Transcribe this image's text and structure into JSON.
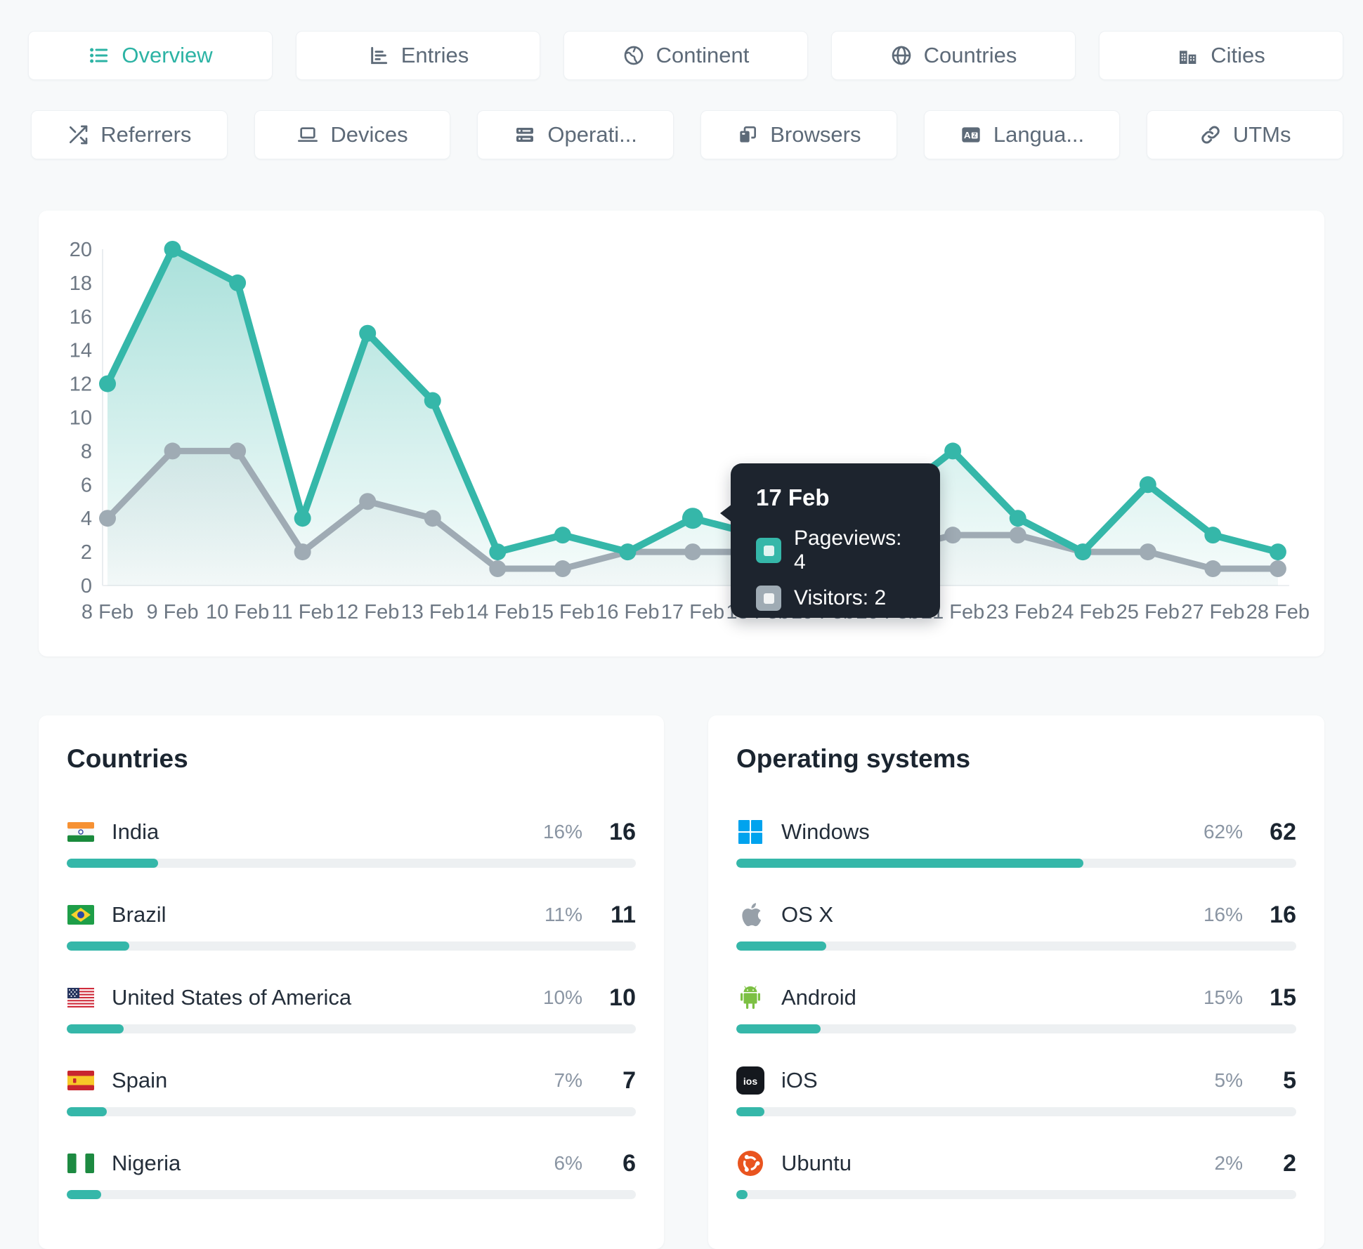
{
  "accent": "#35b7a9",
  "tabs": {
    "row1": [
      {
        "label": "Overview",
        "icon": "list-icon",
        "active": true
      },
      {
        "label": "Entries",
        "icon": "bar-chart-icon",
        "active": false
      },
      {
        "label": "Continent",
        "icon": "earth-icon",
        "active": false
      },
      {
        "label": "Countries",
        "icon": "globe-icon",
        "active": false
      },
      {
        "label": "Cities",
        "icon": "buildings-icon",
        "active": false
      }
    ],
    "row2": [
      {
        "label": "Referrers",
        "icon": "shuffle-icon",
        "active": false
      },
      {
        "label": "Devices",
        "icon": "laptop-icon",
        "active": false
      },
      {
        "label": "Operati...",
        "icon": "server-icon",
        "active": false
      },
      {
        "label": "Browsers",
        "icon": "browser-window-icon",
        "active": false
      },
      {
        "label": "Langua...",
        "icon": "translate-icon",
        "active": false
      },
      {
        "label": "UTMs",
        "icon": "link-icon",
        "active": false
      }
    ]
  },
  "chart_data": {
    "type": "line",
    "categories": [
      "8 Feb",
      "9 Feb",
      "10 Feb",
      "11 Feb",
      "12 Feb",
      "13 Feb",
      "14 Feb",
      "15 Feb",
      "16 Feb",
      "17 Feb",
      "18 Feb",
      "19 Feb",
      "20 Feb",
      "21 Feb",
      "23 Feb",
      "24 Feb",
      "25 Feb",
      "27 Feb",
      "28 Feb"
    ],
    "series": [
      {
        "name": "Pageviews",
        "color": "#35b7a9",
        "values": [
          12,
          20,
          18,
          4,
          15,
          11,
          2,
          3,
          2,
          4,
          3,
          4,
          5,
          8,
          4,
          2,
          6,
          3,
          2
        ]
      },
      {
        "name": "Visitors",
        "color": "#9fabb4",
        "values": [
          4,
          8,
          8,
          2,
          5,
          4,
          1,
          1,
          2,
          2,
          2,
          2,
          2,
          3,
          3,
          2,
          2,
          1,
          1
        ]
      }
    ],
    "ylim": [
      0,
      20
    ],
    "yticks": [
      0,
      2,
      4,
      6,
      8,
      10,
      12,
      14,
      16,
      18,
      20
    ],
    "highlight_index": 9,
    "grid": false,
    "legend": "none"
  },
  "tooltip": {
    "date": "17 Feb",
    "rows": [
      {
        "text": "Pageviews: 4",
        "color": "#35b7a9"
      },
      {
        "text": "Visitors: 2",
        "color": "#9fabb4"
      }
    ]
  },
  "panels": [
    {
      "title": "Countries",
      "rows": [
        {
          "name": "India",
          "pct": "16%",
          "pct_value": 16,
          "count": "16",
          "icon": "flag-india"
        },
        {
          "name": "Brazil",
          "pct": "11%",
          "pct_value": 11,
          "count": "11",
          "icon": "flag-brazil"
        },
        {
          "name": "United States of America",
          "pct": "10%",
          "pct_value": 10,
          "count": "10",
          "icon": "flag-usa"
        },
        {
          "name": "Spain",
          "pct": "7%",
          "pct_value": 7,
          "count": "7",
          "icon": "flag-spain"
        },
        {
          "name": "Nigeria",
          "pct": "6%",
          "pct_value": 6,
          "count": "6",
          "icon": "flag-nigeria"
        }
      ]
    },
    {
      "title": "Operating systems",
      "rows": [
        {
          "name": "Windows",
          "pct": "62%",
          "pct_value": 62,
          "count": "62",
          "icon": "windows-icon"
        },
        {
          "name": "OS X",
          "pct": "16%",
          "pct_value": 16,
          "count": "16",
          "icon": "apple-icon"
        },
        {
          "name": "Android",
          "pct": "15%",
          "pct_value": 15,
          "count": "15",
          "icon": "android-icon"
        },
        {
          "name": "iOS",
          "pct": "5%",
          "pct_value": 5,
          "count": "5",
          "icon": "ios-icon"
        },
        {
          "name": "Ubuntu",
          "pct": "2%",
          "pct_value": 2,
          "count": "2",
          "icon": "ubuntu-icon"
        }
      ]
    }
  ]
}
